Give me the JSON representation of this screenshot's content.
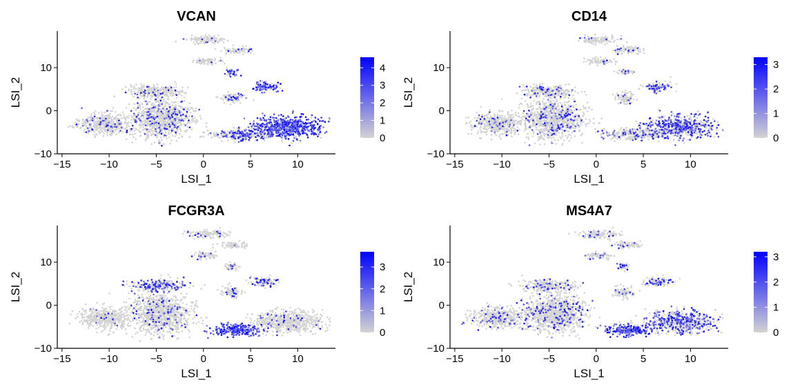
{
  "chart_data": [
    {
      "type": "scatter",
      "title": "VCAN",
      "xlabel": "LSI_1",
      "ylabel": "LSI_2",
      "xlim": [
        -15.5,
        14
      ],
      "ylim": [
        -10,
        18.5
      ],
      "xticks": [
        -15,
        -10,
        -5,
        0,
        5,
        10
      ],
      "yticks": [
        -10,
        0,
        10
      ],
      "legend_ticks": [
        0,
        1,
        2,
        3,
        4
      ],
      "legend_max": 4.6,
      "color_low": "#d3d3d3",
      "color_high": "#0000ff",
      "clusters": [
        {
          "cx": -10.5,
          "cy": -3.0,
          "rx": 3.0,
          "ry": 2.6,
          "level": 0.1
        },
        {
          "cx": -4.5,
          "cy": -2.0,
          "rx": 3.6,
          "ry": 5.0,
          "level": 0.12
        },
        {
          "cx": -5.0,
          "cy": 4.5,
          "rx": 3.2,
          "ry": 1.5,
          "level": 0.1
        },
        {
          "cx": 0.3,
          "cy": 16.5,
          "rx": 2.3,
          "ry": 1.0,
          "level": 0.06
        },
        {
          "cx": 3.5,
          "cy": 14.0,
          "rx": 1.8,
          "ry": 0.8,
          "level": 0.08
        },
        {
          "cx": 0.3,
          "cy": 11.5,
          "rx": 1.5,
          "ry": 0.9,
          "level": 0.06
        },
        {
          "cx": 3.0,
          "cy": 9.0,
          "rx": 0.8,
          "ry": 0.9,
          "level": 0.55
        },
        {
          "cx": 6.5,
          "cy": 5.5,
          "rx": 1.6,
          "ry": 1.2,
          "level": 0.7
        },
        {
          "cx": 3.0,
          "cy": 3.0,
          "rx": 1.2,
          "ry": 1.4,
          "level": 0.25
        },
        {
          "cx": 4.0,
          "cy": -5.5,
          "rx": 3.5,
          "ry": 1.4,
          "level": 0.35
        },
        {
          "cx": 9.0,
          "cy": -3.8,
          "rx": 4.0,
          "ry": 2.8,
          "level": 0.85
        }
      ]
    },
    {
      "type": "scatter",
      "title": "CD14",
      "xlabel": "LSI_1",
      "ylabel": "LSI_2",
      "xlim": [
        -15.5,
        14
      ],
      "ylim": [
        -10,
        18.5
      ],
      "xticks": [
        -15,
        -10,
        -5,
        0,
        5,
        10
      ],
      "yticks": [
        -10,
        0,
        10
      ],
      "legend_ticks": [
        0,
        1,
        2,
        3
      ],
      "legend_max": 3.3,
      "color_low": "#d3d3d3",
      "color_high": "#0000ff",
      "clusters": [
        {
          "cx": -10.5,
          "cy": -3.0,
          "rx": 3.0,
          "ry": 2.6,
          "level": 0.08
        },
        {
          "cx": -4.5,
          "cy": -2.0,
          "rx": 3.6,
          "ry": 5.0,
          "level": 0.1
        },
        {
          "cx": -5.0,
          "cy": 4.5,
          "rx": 3.2,
          "ry": 1.5,
          "level": 0.12
        },
        {
          "cx": 0.3,
          "cy": 16.5,
          "rx": 2.3,
          "ry": 1.0,
          "level": 0.05
        },
        {
          "cx": 3.5,
          "cy": 14.0,
          "rx": 1.8,
          "ry": 0.8,
          "level": 0.06
        },
        {
          "cx": 0.3,
          "cy": 11.5,
          "rx": 1.5,
          "ry": 0.9,
          "level": 0.05
        },
        {
          "cx": 3.0,
          "cy": 9.0,
          "rx": 0.8,
          "ry": 0.9,
          "level": 0.2
        },
        {
          "cx": 6.5,
          "cy": 5.5,
          "rx": 1.6,
          "ry": 1.2,
          "level": 0.35
        },
        {
          "cx": 3.0,
          "cy": 3.0,
          "rx": 1.2,
          "ry": 1.4,
          "level": 0.1
        },
        {
          "cx": 4.0,
          "cy": -5.5,
          "rx": 3.5,
          "ry": 1.4,
          "level": 0.18
        },
        {
          "cx": 9.0,
          "cy": -3.8,
          "rx": 4.0,
          "ry": 2.8,
          "level": 0.5
        }
      ]
    },
    {
      "type": "scatter",
      "title": "FCGR3A",
      "xlabel": "LSI_1",
      "ylabel": "LSI_2",
      "xlim": [
        -15.5,
        14
      ],
      "ylim": [
        -10,
        18.5
      ],
      "xticks": [
        -15,
        -10,
        -5,
        0,
        5,
        10
      ],
      "yticks": [
        -10,
        0,
        10
      ],
      "legend_ticks": [
        0,
        1,
        2,
        3
      ],
      "legend_max": 3.7,
      "color_low": "#d3d3d3",
      "color_high": "#0000ff",
      "clusters": [
        {
          "cx": -10.5,
          "cy": -3.0,
          "rx": 3.0,
          "ry": 2.6,
          "level": 0.05
        },
        {
          "cx": -4.5,
          "cy": -2.0,
          "rx": 3.6,
          "ry": 5.0,
          "level": 0.08
        },
        {
          "cx": -5.0,
          "cy": 4.5,
          "rx": 3.2,
          "ry": 1.5,
          "level": 0.4
        },
        {
          "cx": 0.3,
          "cy": 16.5,
          "rx": 2.3,
          "ry": 1.0,
          "level": 0.08
        },
        {
          "cx": 3.5,
          "cy": 14.0,
          "rx": 1.8,
          "ry": 0.8,
          "level": 0.06
        },
        {
          "cx": 0.3,
          "cy": 11.5,
          "rx": 1.5,
          "ry": 0.9,
          "level": 0.1
        },
        {
          "cx": 3.0,
          "cy": 9.0,
          "rx": 0.8,
          "ry": 0.9,
          "level": 0.2
        },
        {
          "cx": 6.5,
          "cy": 5.5,
          "rx": 1.6,
          "ry": 1.2,
          "level": 0.25
        },
        {
          "cx": 3.0,
          "cy": 3.0,
          "rx": 1.2,
          "ry": 1.4,
          "level": 0.15
        },
        {
          "cx": 3.5,
          "cy": -5.8,
          "rx": 3.0,
          "ry": 1.5,
          "level": 0.85
        },
        {
          "cx": 9.0,
          "cy": -3.8,
          "rx": 4.0,
          "ry": 2.8,
          "level": 0.06
        }
      ]
    },
    {
      "type": "scatter",
      "title": "MS4A7",
      "xlabel": "LSI_1",
      "ylabel": "LSI_2",
      "xlim": [
        -15.5,
        14
      ],
      "ylim": [
        -10,
        18.5
      ],
      "xticks": [
        -15,
        -10,
        -5,
        0,
        5,
        10
      ],
      "yticks": [
        -10,
        0,
        10
      ],
      "legend_ticks": [
        0,
        1,
        2,
        3
      ],
      "legend_max": 3.2,
      "color_low": "#d3d3d3",
      "color_high": "#0000ff",
      "clusters": [
        {
          "cx": -10.5,
          "cy": -3.0,
          "rx": 3.0,
          "ry": 2.6,
          "level": 0.1
        },
        {
          "cx": -4.5,
          "cy": -2.0,
          "rx": 3.6,
          "ry": 5.0,
          "level": 0.12
        },
        {
          "cx": -5.0,
          "cy": 4.5,
          "rx": 3.2,
          "ry": 1.5,
          "level": 0.12
        },
        {
          "cx": 0.3,
          "cy": 16.5,
          "rx": 2.3,
          "ry": 1.0,
          "level": 0.12
        },
        {
          "cx": 3.5,
          "cy": 14.0,
          "rx": 1.8,
          "ry": 0.8,
          "level": 0.1
        },
        {
          "cx": 0.3,
          "cy": 11.5,
          "rx": 1.5,
          "ry": 0.9,
          "level": 0.1
        },
        {
          "cx": 3.0,
          "cy": 9.0,
          "rx": 0.8,
          "ry": 0.9,
          "level": 0.25
        },
        {
          "cx": 6.5,
          "cy": 5.5,
          "rx": 1.6,
          "ry": 1.2,
          "level": 0.3
        },
        {
          "cx": 3.0,
          "cy": 3.0,
          "rx": 1.2,
          "ry": 1.4,
          "level": 0.15
        },
        {
          "cx": 3.5,
          "cy": -5.8,
          "rx": 3.0,
          "ry": 1.5,
          "level": 0.8
        },
        {
          "cx": 9.0,
          "cy": -3.8,
          "rx": 4.0,
          "ry": 2.8,
          "level": 0.4
        }
      ]
    }
  ]
}
